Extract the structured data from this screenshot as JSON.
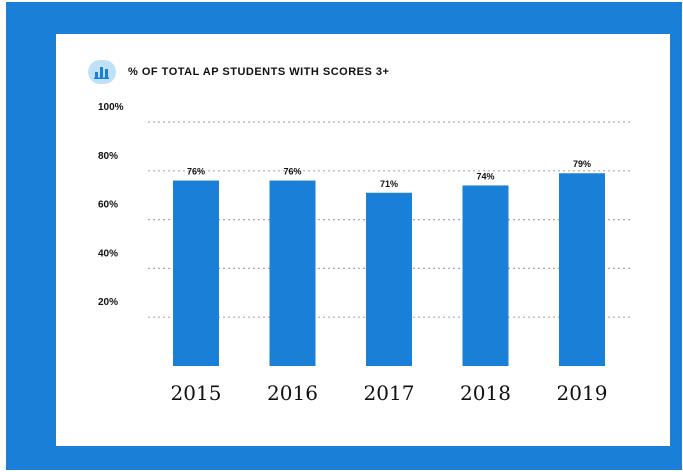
{
  "title": "% OF TOTAL AP STUDENTS WITH SCORES 3+",
  "icon": "bar-chart-icon",
  "colors": {
    "frame": "#1a7fd6",
    "bar": "#1a7fd6",
    "grid": "#aaaaaa",
    "icon_bg": "#bfe0f7"
  },
  "chart_data": {
    "type": "bar",
    "title": "% OF TOTAL AP STUDENTS WITH SCORES 3+",
    "categories": [
      "2015",
      "2016",
      "2017",
      "2018",
      "2019"
    ],
    "values": [
      76,
      76,
      71,
      74,
      79
    ],
    "value_labels": [
      "76%",
      "76%",
      "71%",
      "74%",
      "79%"
    ],
    "yticks": [
      20,
      40,
      60,
      80,
      100
    ],
    "ytick_labels": [
      "20%",
      "40%",
      "60%",
      "80%",
      "100%"
    ],
    "ylim": [
      0,
      100
    ],
    "grid": "dotted horizontal",
    "xlabel": "",
    "ylabel": ""
  }
}
